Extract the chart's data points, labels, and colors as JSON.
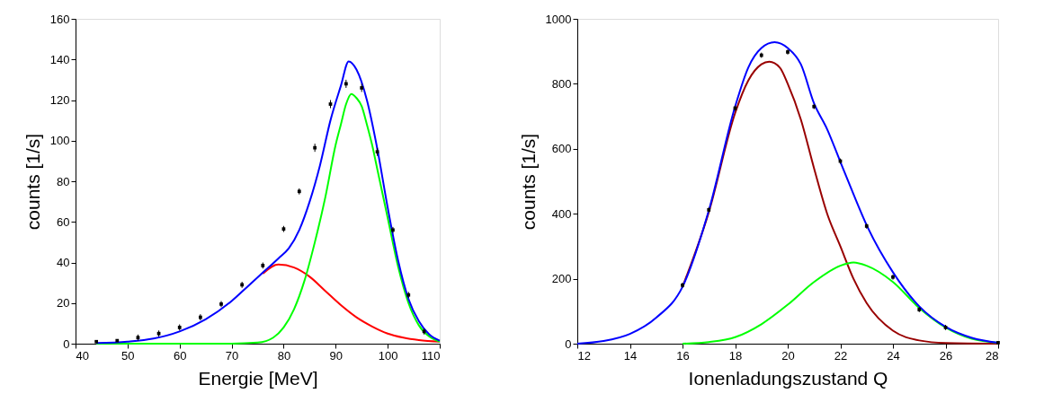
{
  "chart_data": [
    {
      "type": "line",
      "xlabel": "Energie [MeV]",
      "ylabel": "counts [1/s]",
      "xlim": [
        40,
        110
      ],
      "ylim": [
        0,
        160
      ],
      "xticks": [
        40,
        50,
        60,
        70,
        80,
        90,
        100,
        110
      ],
      "yticks": [
        0,
        20,
        40,
        60,
        80,
        100,
        120,
        140,
        160
      ],
      "grid": false,
      "series": [
        {
          "type": "scatter",
          "marker": "square",
          "color": "#000000",
          "x": [
            44,
            48,
            52,
            56,
            60,
            64,
            68,
            72,
            76,
            80,
            83,
            86,
            89,
            92,
            95,
            98,
            101,
            104,
            107
          ],
          "values": [
            1,
            1.5,
            3,
            5,
            8,
            13,
            19.5,
            29,
            38.5,
            56.5,
            75,
            96.5,
            118,
            128,
            126,
            94.5,
            56,
            24,
            6
          ],
          "errors": [
            null,
            null,
            1.5,
            1.5,
            1.5,
            1.5,
            1.5,
            1.5,
            1.5,
            1.5,
            1.5,
            2,
            2,
            2,
            2,
            2,
            1.5,
            1.5,
            1.5
          ]
        },
        {
          "color": "#ff0000",
          "x": [
            76,
            79,
            82,
            85,
            88,
            91,
            94,
            97,
            100,
            103,
            106,
            110
          ],
          "values": [
            34.5,
            39,
            37.5,
            33,
            26,
            19,
            13,
            8.5,
            5,
            3,
            1.8,
            1
          ]
        },
        {
          "color": "#00ff00",
          "x": [
            44,
            70,
            75,
            78,
            80,
            82,
            84,
            86,
            88,
            90,
            91,
            92,
            93,
            94,
            95,
            96,
            97,
            98,
            100,
            102,
            104,
            106,
            108,
            110
          ],
          "values": [
            0,
            0,
            0.5,
            3,
            8,
            17,
            31,
            50,
            72,
            98,
            108,
            118,
            123,
            121,
            117,
            108,
            98,
            86,
            62,
            38,
            20,
            9,
            3.5,
            1
          ]
        },
        {
          "color": "#0000ff",
          "x": [
            44,
            50,
            55,
            60,
            65,
            70,
            73,
            76,
            79,
            81,
            83,
            85,
            87,
            89,
            91,
            92.5,
            94,
            96,
            98,
            100,
            102,
            104,
            106,
            108,
            110
          ],
          "values": [
            0.3,
            1,
            2.5,
            6,
            12,
            21,
            28,
            35,
            42,
            47,
            56,
            70,
            88,
            110,
            127,
            139,
            135,
            120,
            96,
            67,
            41,
            22,
            11,
            4.5,
            1.5
          ]
        }
      ]
    },
    {
      "type": "line",
      "xlabel": "Ionenladungszustand Q",
      "ylabel": "counts [1/s]",
      "xlim": [
        12,
        28
      ],
      "ylim": [
        0,
        1000
      ],
      "xticks": [
        12,
        14,
        16,
        18,
        20,
        22,
        24,
        26,
        28
      ],
      "yticks": [
        0,
        200,
        400,
        600,
        800,
        1000
      ],
      "grid": false,
      "series": [
        {
          "type": "scatter",
          "marker": "square",
          "color": "#000000",
          "x": [
            16,
            17,
            18,
            19,
            20,
            21,
            22,
            23,
            24,
            25,
            26,
            28
          ],
          "values": [
            180,
            412,
            725,
            888,
            898,
            730,
            562,
            362,
            205,
            105,
            50,
            3
          ],
          "errors": [
            8,
            8,
            8,
            8,
            8,
            8,
            8,
            8,
            8,
            8,
            8,
            null
          ]
        },
        {
          "color": "#990000",
          "x": [
            16,
            17,
            18,
            18.5,
            19,
            19.3,
            19.7,
            20,
            20.5,
            21,
            21.5,
            22,
            22.5,
            23,
            24,
            25,
            26,
            28
          ],
          "values": [
            175,
            405,
            710,
            810,
            860,
            868,
            850,
            800,
            690,
            540,
            400,
            300,
            200,
            125,
            40,
            10,
            2,
            0
          ]
        },
        {
          "color": "#00ff00",
          "x": [
            16,
            17,
            18,
            19,
            20,
            21,
            22,
            22.5,
            23,
            24,
            25,
            26,
            27,
            28
          ],
          "values": [
            0,
            5,
            20,
            60,
            120,
            190,
            240,
            250,
            240,
            190,
            110,
            50,
            15,
            3
          ]
        },
        {
          "color": "#0000ff",
          "x": [
            12,
            13,
            14,
            15,
            16,
            17,
            18,
            18.5,
            19,
            19.5,
            20,
            20.5,
            21,
            21.5,
            22,
            22.5,
            23,
            24,
            25,
            26,
            27,
            28
          ],
          "values": [
            0,
            8,
            30,
            80,
            175,
            410,
            730,
            850,
            910,
            928,
            910,
            860,
            740,
            660,
            560,
            460,
            365,
            220,
            115,
            52,
            18,
            3
          ]
        }
      ]
    }
  ]
}
